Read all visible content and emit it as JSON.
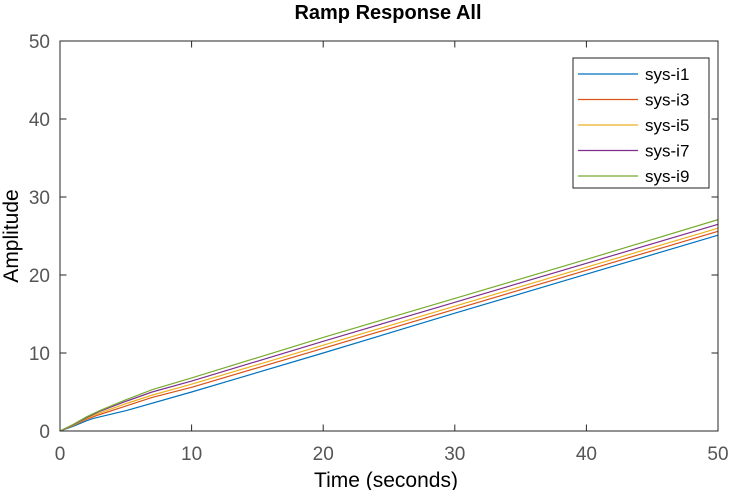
{
  "chart_data": {
    "type": "line",
    "title": "Ramp Response All",
    "xlabel": "Time (seconds)",
    "ylabel": "Amplitude",
    "xlim": [
      0,
      50
    ],
    "ylim": [
      0,
      50
    ],
    "xticks": [
      0,
      10,
      20,
      30,
      40,
      50
    ],
    "yticks": [
      0,
      10,
      20,
      30,
      40,
      50
    ],
    "grid": false,
    "legend_position": "top-right",
    "series": [
      {
        "name": "sys-i1",
        "color": "#0072BD",
        "x": [
          0,
          1,
          2,
          2.5,
          3,
          5,
          10,
          20,
          30,
          40,
          50
        ],
        "y": [
          0,
          0.6,
          1.3,
          1.6,
          1.8,
          2.6,
          5.0,
          10.0,
          15.1,
          20.1,
          25.1
        ]
      },
      {
        "name": "sys-i3",
        "color": "#D95319",
        "x": [
          0,
          1,
          2,
          3,
          5,
          7,
          10,
          20,
          30,
          40,
          50
        ],
        "y": [
          0,
          0.7,
          1.5,
          2.1,
          3.2,
          4.3,
          5.6,
          10.6,
          15.6,
          20.6,
          25.6
        ]
      },
      {
        "name": "sys-i5",
        "color": "#EDB120",
        "x": [
          0,
          1,
          2,
          3,
          5,
          7,
          10,
          20,
          30,
          40,
          50
        ],
        "y": [
          0,
          0.75,
          1.6,
          2.3,
          3.5,
          4.6,
          6.0,
          11.0,
          16.0,
          21.0,
          26.0
        ]
      },
      {
        "name": "sys-i7",
        "color": "#7E2F8E",
        "x": [
          0,
          1,
          2,
          3,
          5,
          7,
          10,
          20,
          30,
          40,
          50
        ],
        "y": [
          0,
          0.8,
          1.7,
          2.5,
          3.8,
          5.0,
          6.4,
          11.5,
          16.5,
          21.5,
          26.5
        ]
      },
      {
        "name": "sys-i9",
        "color": "#77AC30",
        "x": [
          0,
          1,
          2,
          3,
          5,
          7,
          10,
          20,
          30,
          40,
          50
        ],
        "y": [
          0,
          0.85,
          1.8,
          2.6,
          4.0,
          5.3,
          6.8,
          12.0,
          17.0,
          22.0,
          27.1
        ]
      }
    ]
  }
}
